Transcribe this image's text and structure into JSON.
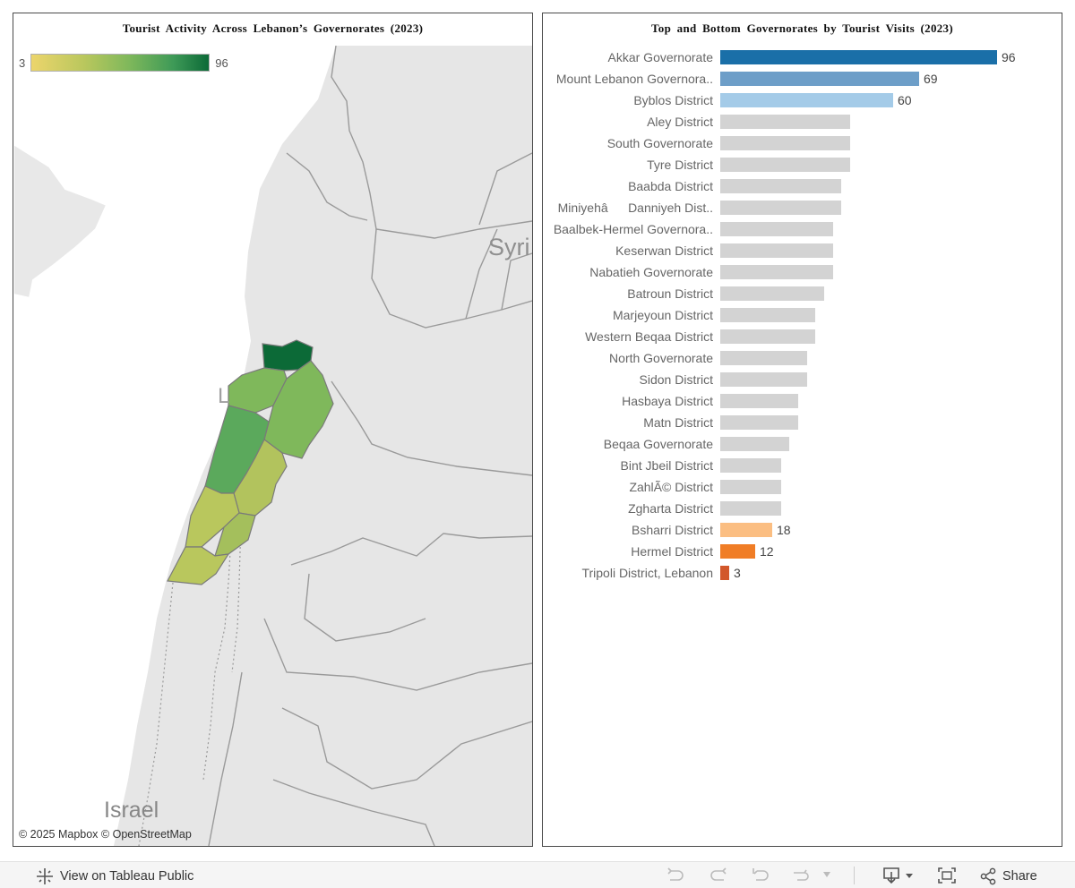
{
  "map": {
    "title": "Tourist Activity Across Lebanon’s Governorates (2023)",
    "legend": {
      "min_label": "3",
      "max_label": "96",
      "color_low": "#ecd56c",
      "color_high": "#0c6a37"
    },
    "place_labels": {
      "syria": "Syri",
      "israel": "Israel",
      "lebanon_partial": "L"
    },
    "attribution": "© 2025 Mapbox  © OpenStreetMap"
  },
  "chart_data": {
    "type": "bar",
    "orientation": "horizontal",
    "title": "Top and Bottom Governorates by Tourist Visits (2023)",
    "categories": [
      "Akkar Governorate",
      "Mount Lebanon Governora..",
      "Byblos District",
      "Aley District",
      "South Governorate",
      "Tyre District",
      "Baabda District",
      "MiniyehâDanniyeh Dist..",
      "Baalbek-Hermel Governora..",
      "Keserwan District",
      "Nabatieh Governorate",
      "Batroun District",
      "Marjeyoun District",
      "Western Beqaa District",
      "North Governorate",
      "Sidon District",
      "Hasbaya District",
      "Matn District",
      "Beqaa Governorate",
      "Bint Jbeil District",
      "ZahlÃ© District",
      "Zgharta District",
      "Bsharri District",
      "Hermel District",
      "Tripoli District, Lebanon"
    ],
    "values": [
      96,
      69,
      60,
      45,
      45,
      45,
      42,
      42,
      39,
      39,
      39,
      36,
      33,
      33,
      30,
      30,
      27,
      27,
      24,
      21,
      21,
      21,
      18,
      12,
      3
    ],
    "labeled_values": [
      "96",
      "69",
      "60",
      "",
      "",
      "",
      "",
      "",
      "",
      "",
      "",
      "",
      "",
      "",
      "",
      "",
      "",
      "",
      "",
      "",
      "",
      "",
      "18",
      "12",
      "3"
    ],
    "colors": [
      "#1a6fa8",
      "#6d9ec8",
      "#a4cbe8",
      "#d3d3d3",
      "#d3d3d3",
      "#d3d3d3",
      "#d3d3d3",
      "#d3d3d3",
      "#d3d3d3",
      "#d3d3d3",
      "#d3d3d3",
      "#d3d3d3",
      "#d3d3d3",
      "#d3d3d3",
      "#d3d3d3",
      "#d3d3d3",
      "#d3d3d3",
      "#d3d3d3",
      "#d3d3d3",
      "#d3d3d3",
      "#d3d3d3",
      "#d3d3d3",
      "#fbbe82",
      "#f07d26",
      "#d2572a"
    ],
    "xlim": [
      0,
      96
    ]
  },
  "footer": {
    "view_label": "View on Tableau Public",
    "share_label": "Share"
  }
}
